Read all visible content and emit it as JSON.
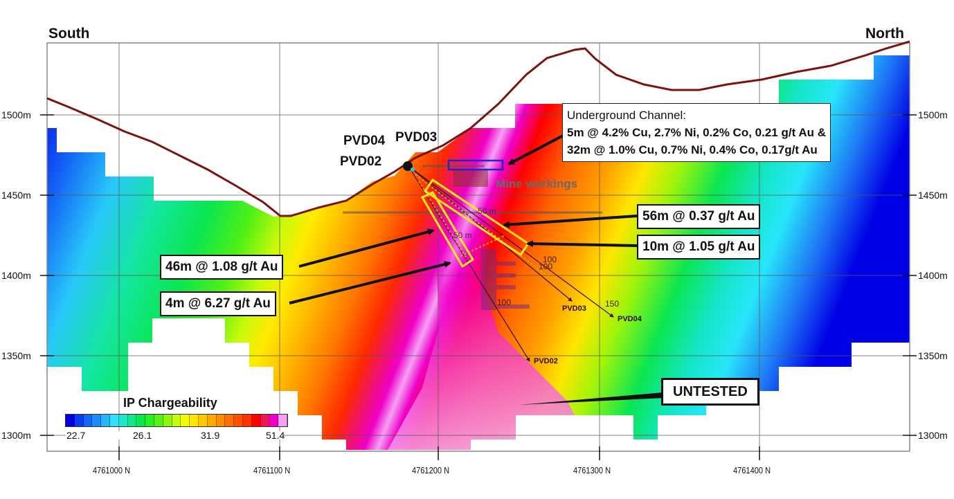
{
  "section": {
    "left_direction": "South",
    "right_direction": "North",
    "elevation_ticks": [
      "1500m",
      "1450m",
      "1400m",
      "1350m",
      "1300m"
    ],
    "northing_ticks": [
      "4761000 N",
      "4761100 N",
      "4761200 N",
      "4761300 N",
      "4761400 N"
    ]
  },
  "drill_holes": {
    "collar_labels": [
      "PVD04",
      "PVD03",
      "PVD02"
    ],
    "end_labels": [
      "PVD03",
      "PVD04",
      "PVD02"
    ],
    "depth_marks": [
      "100",
      "100",
      "100",
      "150",
      "50 m",
      "50 m"
    ]
  },
  "mine_workings_label": "Mine workings",
  "callouts": {
    "underground": {
      "line1": "Underground Channel:",
      "line2": "5m @ 4.2% Cu, 2.7% Ni, 0.2% Co, 0.21 g/t Au  &",
      "line3": "32m @ 1.0% Cu, 0.7% Ni, 0.4% Co, 0.17g/t Au"
    },
    "int_56m": "56m @ 0.37 g/t Au",
    "int_10m": "10m @ 1.05 g/t Au",
    "int_46m": "46m @ 1.08 g/t Au",
    "int_4m": "4m @ 6.27 g/t Au",
    "untested": "UNTESTED"
  },
  "legend": {
    "title": "IP Chargeability",
    "tick_labels": [
      "22.7",
      "26.1",
      "31.9",
      "51.4"
    ],
    "colors": [
      "#0000e6",
      "#0a3cf0",
      "#1466f5",
      "#1e8cf8",
      "#28b4fa",
      "#32e0fc",
      "#1ee6c8",
      "#14e68c",
      "#0ae650",
      "#28f01e",
      "#5af014",
      "#8cf50a",
      "#c8fa0a",
      "#f0fa00",
      "#ffe600",
      "#ffc800",
      "#ffaa00",
      "#ff8c00",
      "#ff6e00",
      "#ff5000",
      "#ff3200",
      "#ff0000",
      "#f0145a",
      "#f000c8",
      "#f5a0f5"
    ]
  },
  "colors": {
    "terrain": "#7a1410",
    "highlight_box": "#f5e61e",
    "workings_box": "#1e28c8"
  }
}
